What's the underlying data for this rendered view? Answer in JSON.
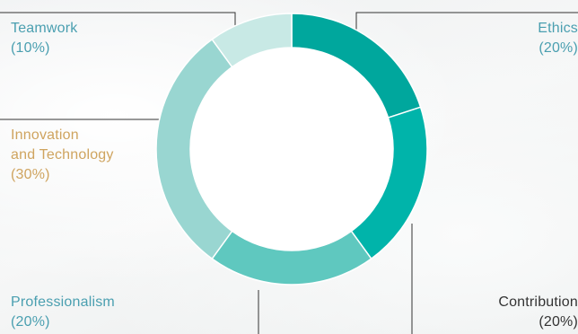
{
  "chart_data": {
    "type": "pie",
    "donut": true,
    "slices": [
      {
        "label": "Ethics",
        "value": 20,
        "value_label": "(20%)",
        "color": "#00a79d"
      },
      {
        "label": "Contribution",
        "value": 20,
        "value_label": "(20%)",
        "color": "#00b4aa"
      },
      {
        "label": "Professionalism",
        "value": 20,
        "value_label": "(20%)",
        "color": "#5fc8bf"
      },
      {
        "label": "Innovation and Technology",
        "label_lines": [
          "Innovation",
          "and Technology"
        ],
        "value": 30,
        "value_label": "(30%)",
        "color": "#99d6d1"
      },
      {
        "label": "Teamwork",
        "value": 10,
        "value_label": "(10%)",
        "color": "#c8e9e5"
      }
    ],
    "label_colors": {
      "teal": "#4a9fb0",
      "gold": "#cfa45f",
      "dark": "#333333"
    }
  }
}
